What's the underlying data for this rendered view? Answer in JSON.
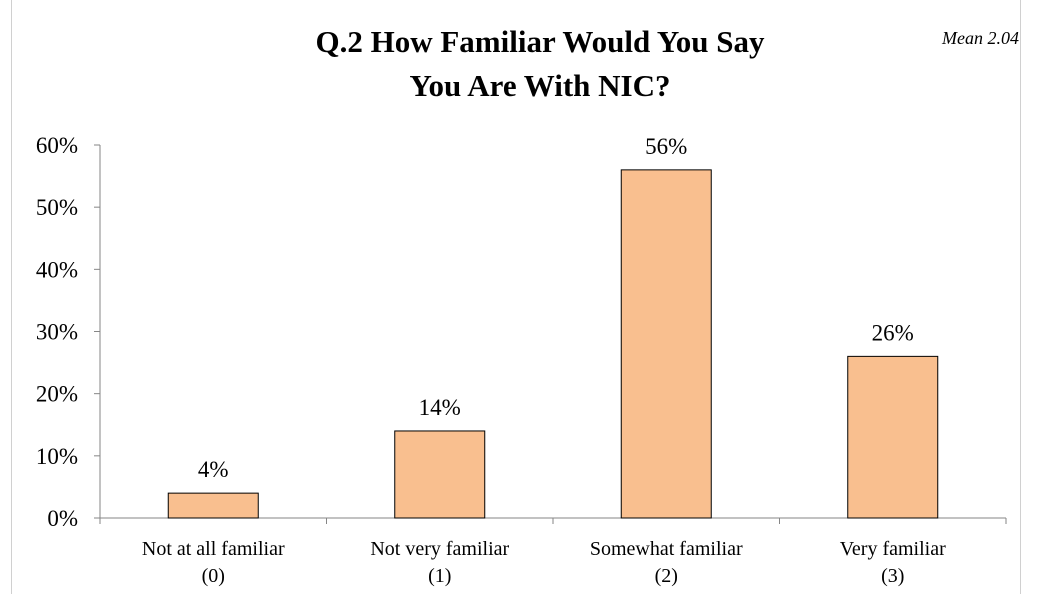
{
  "chart_data": {
    "type": "bar",
    "title_lines": [
      "Q.2 How Familiar Would You Say",
      "You Are With NIC?"
    ],
    "annotation": "Mean 2.04",
    "categories": [
      [
        "Not at all familiar",
        "(0)"
      ],
      [
        "Not very familiar",
        "(1)"
      ],
      [
        "Somewhat familiar",
        "(2)"
      ],
      [
        "Very familiar",
        "(3)"
      ]
    ],
    "values": [
      4,
      14,
      56,
      26
    ],
    "data_labels": [
      "4%",
      "14%",
      "56%",
      "26%"
    ],
    "yticks": [
      "0%",
      "10%",
      "20%",
      "30%",
      "40%",
      "50%",
      "60%"
    ],
    "ylim": [
      0,
      60
    ],
    "xlabel": "",
    "ylabel": "",
    "grid": false,
    "legend": "none",
    "colors": {
      "bar_fill": "#f9bf8f",
      "bar_stroke": "#000000",
      "axis": "#868686"
    }
  }
}
